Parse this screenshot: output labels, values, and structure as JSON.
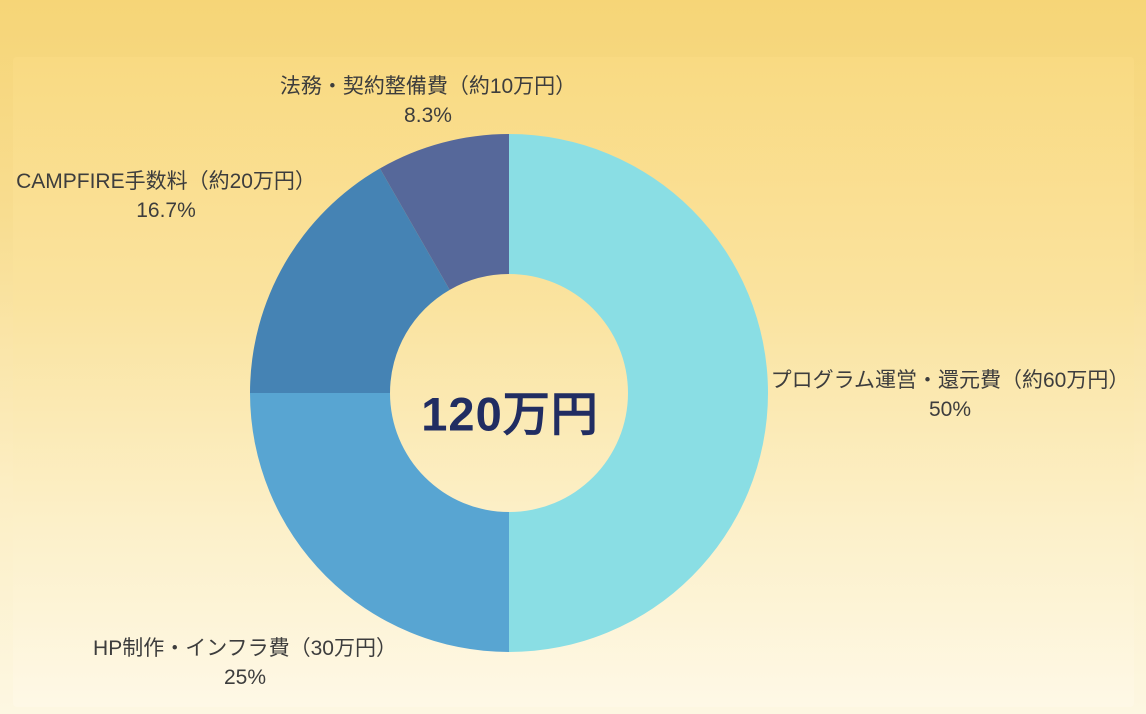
{
  "chart_data": {
    "type": "pie",
    "donut": true,
    "inner_radius_ratio": 0.46,
    "start_angle_deg": 0,
    "direction": "clockwise",
    "legend_position": "none",
    "labels_outside": true,
    "center_label": "120万円",
    "segments": [
      {
        "label": "プログラム運営・還元費（約60万円）",
        "pct_label": "50%",
        "value_pct": 50,
        "color": "#8adee4"
      },
      {
        "label": "HP制作・インフラ費（30万円）",
        "pct_label": "25%",
        "value_pct": 25,
        "color": "#58a5d2"
      },
      {
        "label": "CAMPFIRE手数料（約20万円）",
        "pct_label": "16.7%",
        "value_pct": 16.7,
        "color": "#4583b4"
      },
      {
        "label": "法務・契約整備費（約10万円）",
        "pct_label": "8.3%",
        "value_pct": 8.3,
        "color": "#56689a"
      }
    ]
  }
}
